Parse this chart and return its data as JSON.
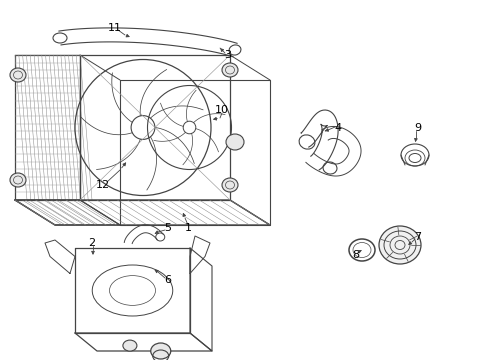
{
  "background_color": "#ffffff",
  "line_color": "#444444",
  "label_color": "#000000",
  "figsize": [
    4.9,
    3.6
  ],
  "dpi": 100
}
